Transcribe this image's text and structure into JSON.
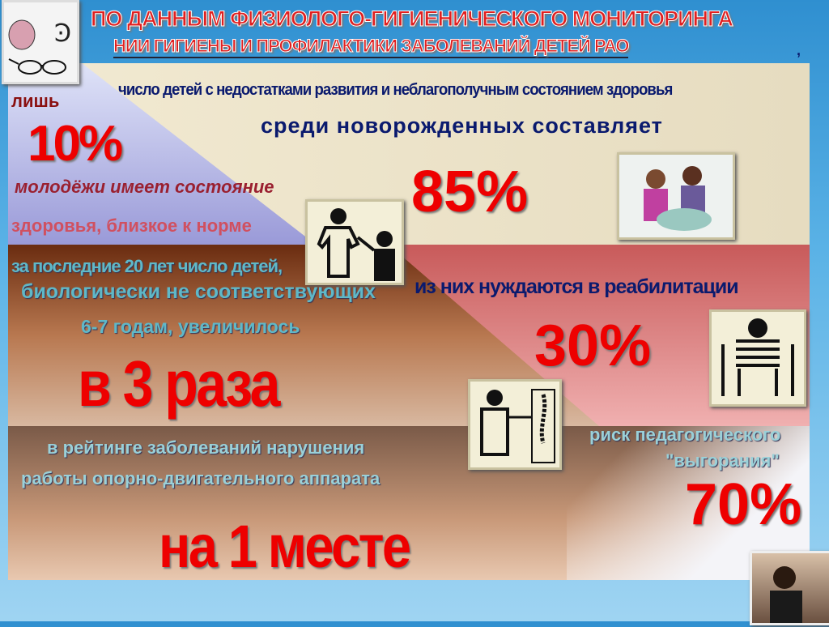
{
  "title": {
    "line1": "ПО ДАННЫМ ФИЗИОЛОГО-ГИГИЕНИЧЕСКОГО МОНИТОРИНГА",
    "line2": "НИИ ГИГИЕНЫ И ПРОФИЛАКТИКИ ЗАБОЛЕВАНИЙ ДЕТЕЙ РАО",
    "comma": ","
  },
  "left": {
    "only": "лишь",
    "percent": "10%",
    "line1": "молодёжи имеет состояние",
    "line2": "здоровья, близкое к норме"
  },
  "newborns": {
    "line1": "число детей с недостатками развития и неблагополучным состоянием здоровья",
    "line2": "среди новорожденных составляет",
    "percent": "85%"
  },
  "rehab": {
    "text": "из них нуждаются в реабилитации",
    "percent": "30%"
  },
  "growth": {
    "line1": "за последние 20 лет число детей,",
    "line2": "биологически не соответствующих",
    "line3": "6-7 годам, увеличилось",
    "value": "в 3 раза"
  },
  "ranking": {
    "line1": "в рейтинге заболеваний нарушения",
    "line2": "работы опорно-двигательного аппарата",
    "value": "на 1 месте"
  },
  "burnout": {
    "line1": "риск педагогического",
    "line2": "\"выгорания\"",
    "percent": "70%"
  },
  "colors": {
    "accent_red": "#e00000",
    "navy": "#0a1a6e",
    "beige": "#eee4c8"
  }
}
